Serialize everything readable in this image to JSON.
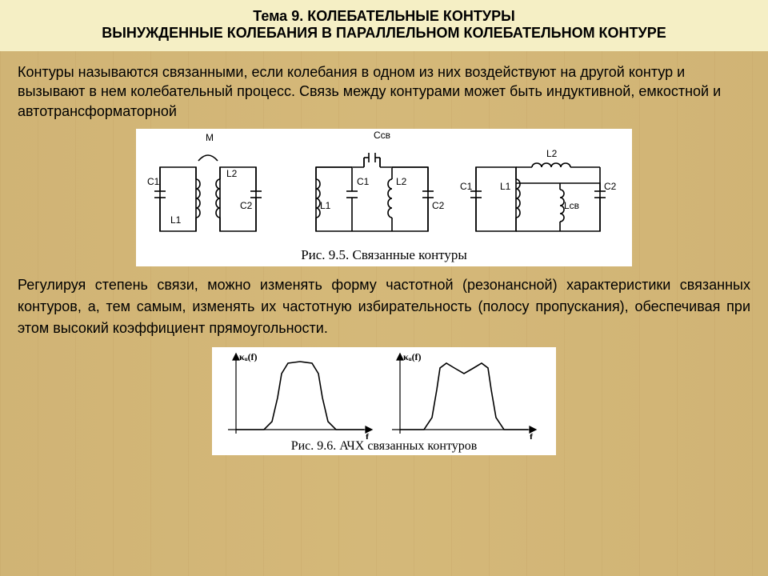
{
  "header": {
    "line1": "Тема 9. КОЛЕБАТЕЛЬНЫЕ КОНТУРЫ",
    "line2": "ВЫНУЖДЕННЫЕ КОЛЕБАНИЯ В ПАРАЛЛЕЛЬНОМ КОЛЕБАТЕЛЬНОМ КОНТУРЕ"
  },
  "paragraph1": "Контуры называются связанными, если колебания в одном из них воздействуют на другой контур и вызывают в нем колебательный процесс. Связь между контурами может быть индуктивной, емкостной и автотрансформаторной",
  "figure1": {
    "caption": "Рис. 9.5. Связанные контуры",
    "labels": {
      "M": "M",
      "C1": "C1",
      "L1": "L1",
      "L2": "L2",
      "C2": "C2",
      "Csv": "Cсв",
      "Lsv": "Lсв"
    },
    "style": {
      "stroke": "#000000",
      "stroke_width": 1.6,
      "background": "#ffffff"
    }
  },
  "paragraph2": "Регулируя степень связи, можно изменять форму частотной (резонансной) характеристики связанных контуров, а, тем самым, изменять их частотную избирательность (полосу пропускания), обеспечивая при этом высокий коэффициент прямоугольности.",
  "figure2": {
    "caption": "Рис. 9.6. АЧХ связанных контуров",
    "labels": {
      "yaxis": "κᵤ(f)",
      "xaxis": "f"
    },
    "plot_left": {
      "type": "line",
      "points": [
        [
          10,
          95
        ],
        [
          45,
          95
        ],
        [
          55,
          85
        ],
        [
          62,
          55
        ],
        [
          67,
          25
        ],
        [
          75,
          12
        ],
        [
          90,
          10
        ],
        [
          105,
          12
        ],
        [
          113,
          25
        ],
        [
          118,
          55
        ],
        [
          125,
          85
        ],
        [
          135,
          95
        ],
        [
          170,
          95
        ]
      ],
      "stroke": "#000000",
      "stroke_width": 1.6
    },
    "plot_right": {
      "type": "line",
      "points": [
        [
          10,
          95
        ],
        [
          40,
          95
        ],
        [
          50,
          80
        ],
        [
          56,
          45
        ],
        [
          60,
          18
        ],
        [
          68,
          12
        ],
        [
          78,
          18
        ],
        [
          90,
          25
        ],
        [
          102,
          18
        ],
        [
          112,
          12
        ],
        [
          120,
          18
        ],
        [
          124,
          45
        ],
        [
          130,
          80
        ],
        [
          140,
          95
        ],
        [
          170,
          95
        ]
      ],
      "stroke": "#000000",
      "stroke_width": 1.6
    },
    "axes": {
      "stroke": "#000000",
      "stroke_width": 1.2
    },
    "style": {
      "background": "#ffffff"
    }
  },
  "page_style": {
    "background_base": "#d4b878",
    "header_bg": "#f5efc5",
    "text_color": "#000000",
    "body_fontsize": 18,
    "header_fontsize": 18,
    "caption_fontsize": 17
  }
}
